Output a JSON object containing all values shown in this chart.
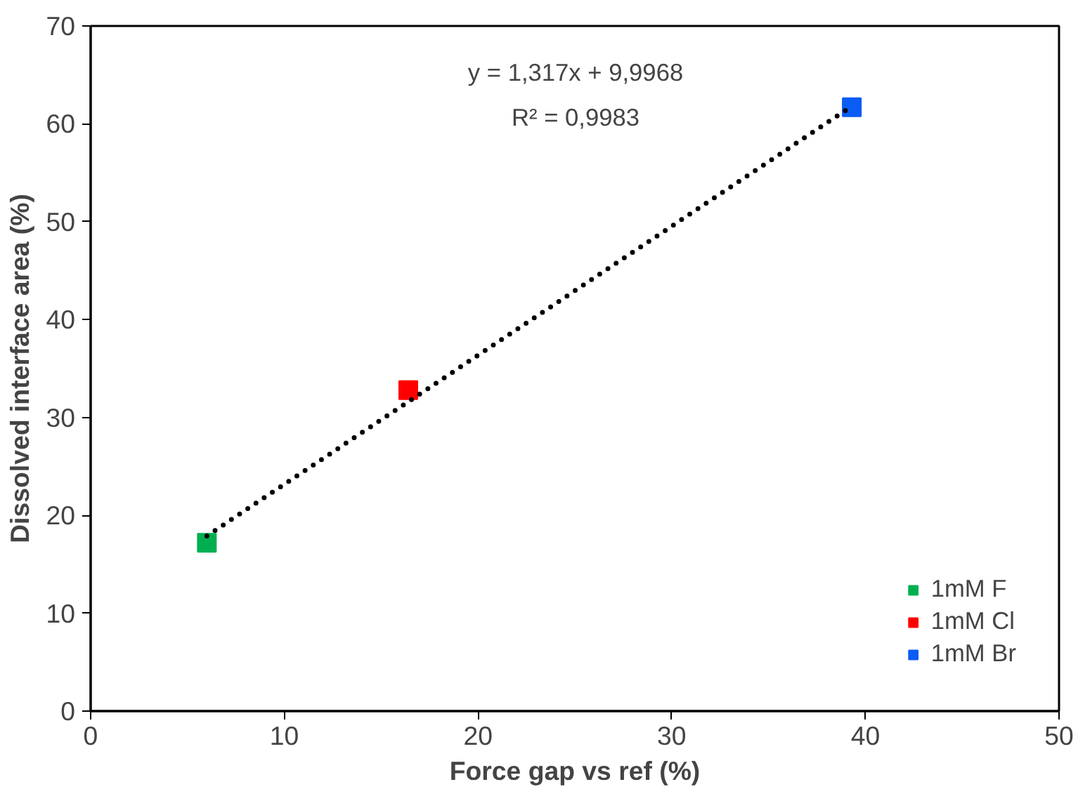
{
  "chart_data": {
    "type": "scatter",
    "xlabel": "Force gap vs ref (%)",
    "ylabel": "Dissolved interface area (%)",
    "xlim": [
      0,
      50
    ],
    "xticks": [
      0,
      10,
      20,
      30,
      40,
      50
    ],
    "ylim": [
      0,
      70
    ],
    "yticks": [
      0,
      10,
      20,
      30,
      40,
      50,
      60,
      70
    ],
    "grid": false,
    "legend": "bottom right",
    "marker": "square",
    "series": [
      {
        "name": "1mM F",
        "color": "#00b050",
        "x": [
          6.0
        ],
        "values": [
          17.2
        ]
      },
      {
        "name": "1mM Cl",
        "color": "#ff0000",
        "x": [
          16.4
        ],
        "values": [
          32.8
        ]
      },
      {
        "name": "1mM Br",
        "color": "#0a5cf5",
        "x": [
          39.3
        ],
        "values": [
          61.7
        ]
      },
      {
        "type": "line",
        "color": "#000000",
        "line_style": "dotted",
        "marker": "none",
        "x": [
          6.0,
          39.3
        ],
        "values": [
          17.9,
          61.8
        ]
      }
    ],
    "annotations": [
      "y = 1,317x + 9,9968",
      "R² = 0,9983"
    ]
  }
}
